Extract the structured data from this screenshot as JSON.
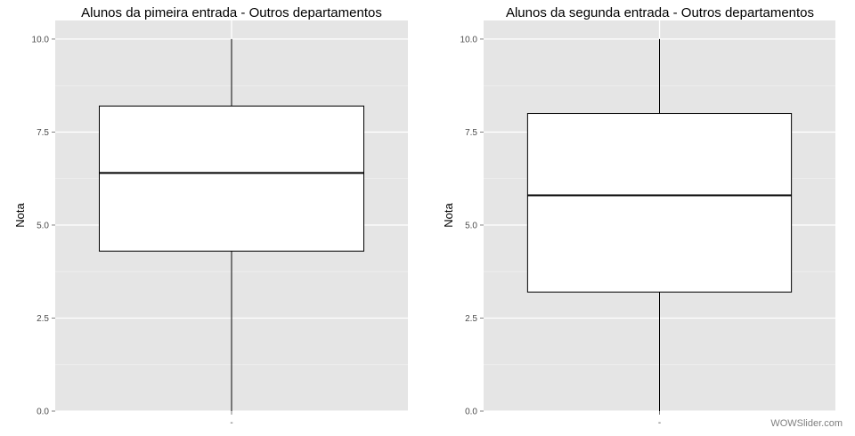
{
  "chart_data": [
    {
      "type": "boxplot",
      "title": "Alunos da pimeira entrada - Outros departamentos",
      "xlabel": "",
      "ylabel": "Nota",
      "ylim": [
        0,
        10.5
      ],
      "yticks": [
        "0.0",
        "2.5",
        "5.0",
        "7.5",
        "10.0"
      ],
      "ytick_values": [
        0,
        2.5,
        5,
        7.5,
        10
      ],
      "categories": [
        "-"
      ],
      "box": {
        "min": 0.0,
        "q1": 4.3,
        "median": 6.4,
        "q3": 8.2,
        "max": 10.0
      },
      "grid": true,
      "background": "#e5e5e5"
    },
    {
      "type": "boxplot",
      "title": "Alunos da segunda entrada - Outros departamentos",
      "xlabel": "",
      "ylabel": "Nota",
      "ylim": [
        0,
        10.5
      ],
      "yticks": [
        "0.0",
        "2.5",
        "5.0",
        "7.5",
        "10.0"
      ],
      "ytick_values": [
        0,
        2.5,
        5,
        7.5,
        10
      ],
      "categories": [
        "-"
      ],
      "box": {
        "min": 0.0,
        "q1": 3.2,
        "median": 5.8,
        "q3": 8.0,
        "max": 10.0
      },
      "grid": true,
      "background": "#e5e5e5"
    }
  ],
  "watermark": "WOWSlider.com"
}
